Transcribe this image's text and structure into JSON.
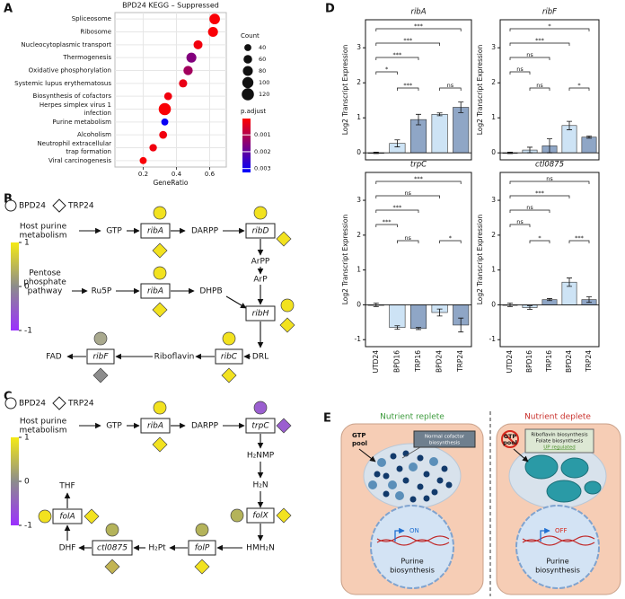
{
  "panel_labels": [
    "A",
    "B",
    "C",
    "D",
    "E"
  ],
  "chart_data": [
    {
      "type": "dot",
      "title": "BPD24 KEGG – Suppressed",
      "categories": [
        "Spliceosome",
        "Ribosome",
        "Nucleocytoplasmic transport",
        "Thermogenesis",
        "Oxidative phosphorylation",
        "Systemic lupus erythematosus",
        "Biosynthesis of cofactors",
        "Herpes simplex virus 1\ninfection",
        "Purine metabolism",
        "Alcoholism",
        "Neutrophil extracellular\ntrap formation",
        "Viral carcinogenesis"
      ],
      "values": [
        0.63,
        0.62,
        0.53,
        0.49,
        0.47,
        0.44,
        0.35,
        0.33,
        0.33,
        0.32,
        0.26,
        0.2
      ],
      "size": [
        90,
        80,
        65,
        80,
        70,
        55,
        50,
        120,
        40,
        50,
        45,
        40
      ],
      "p_adjust": [
        0.0001,
        0.0001,
        0.0002,
        0.0016,
        0.0012,
        0.0003,
        0.0002,
        0.0001,
        0.0031,
        0.0002,
        0.0002,
        0.0001
      ],
      "x_label": "GeneRatio",
      "xlim": [
        0.03,
        0.7
      ],
      "xticks": [
        0.2,
        0.4,
        0.6
      ],
      "grid": true,
      "size_legend": {
        "title": "Count",
        "values": [
          40,
          60,
          80,
          100,
          120
        ]
      },
      "color_legend": {
        "title": "p.adjust",
        "ticks": [
          0.001,
          0.002,
          0.003
        ],
        "lim": [
          3e-05,
          0.00323
        ],
        "colors": [
          "#ff0000",
          "#0000ff"
        ]
      }
    },
    {
      "type": "bar",
      "title": "ribA",
      "y_label": "Log2 Transcript Expression",
      "categories": [
        null,
        null,
        null,
        null,
        null
      ],
      "values": [
        0,
        0.27,
        0.95,
        1.1,
        1.3
      ],
      "errors": [
        0.02,
        0.1,
        0.15,
        0.04,
        0.15
      ],
      "colors": [
        "#cccccc",
        "#cde3f5",
        "#8fa6c6",
        "#cde3f5",
        "#8fa6c6"
      ],
      "ylim": [
        -0.2,
        3.8
      ],
      "yticks": [
        0,
        1,
        2,
        3
      ],
      "comparisons": [
        {
          "pair": [
            0,
            4
          ],
          "label": "***"
        },
        {
          "pair": [
            0,
            3
          ],
          "label": "***"
        },
        {
          "pair": [
            0,
            2
          ],
          "label": "***"
        },
        {
          "pair": [
            0,
            1
          ],
          "label": "*"
        },
        {
          "pair": [
            1,
            2
          ],
          "label": "***"
        },
        {
          "pair": [
            3,
            4
          ],
          "label": "ns"
        }
      ]
    },
    {
      "type": "bar",
      "title": "ribF",
      "y_label": "Log2 Transcript Expression",
      "categories": [
        null,
        null,
        null,
        null,
        null
      ],
      "values": [
        0,
        0.08,
        0.2,
        0.78,
        0.45
      ],
      "errors": [
        0.02,
        0.08,
        0.2,
        0.12,
        0.03
      ],
      "colors": [
        "#cccccc",
        "#cde3f5",
        "#8fa6c6",
        "#cde3f5",
        "#8fa6c6"
      ],
      "ylim": [
        -0.2,
        3.8
      ],
      "yticks": [
        0,
        1,
        2,
        3
      ],
      "comparisons": [
        {
          "pair": [
            0,
            4
          ],
          "label": "*"
        },
        {
          "pair": [
            0,
            3
          ],
          "label": "***"
        },
        {
          "pair": [
            0,
            2
          ],
          "label": "ns"
        },
        {
          "pair": [
            0,
            1
          ],
          "label": "ns"
        },
        {
          "pair": [
            1,
            2
          ],
          "label": "ns"
        },
        {
          "pair": [
            3,
            4
          ],
          "label": "*"
        }
      ]
    },
    {
      "type": "bar",
      "title": "trpC",
      "y_label": "Log2 Transcript Expression",
      "categories": [
        "UTD24",
        "BPD16",
        "TRP16",
        "BPD24",
        "TRP24"
      ],
      "values": [
        0,
        -0.65,
        -0.68,
        -0.22,
        -0.58
      ],
      "errors": [
        0.05,
        0.05,
        0.03,
        0.1,
        0.2
      ],
      "colors": [
        "#cccccc",
        "#cde3f5",
        "#8fa6c6",
        "#cde3f5",
        "#8fa6c6"
      ],
      "ylim": [
        -1.2,
        3.8
      ],
      "yticks": [
        -1,
        0,
        1,
        2,
        3
      ],
      "comparisons": [
        {
          "pair": [
            0,
            4
          ],
          "label": "***"
        },
        {
          "pair": [
            0,
            3
          ],
          "label": "ns"
        },
        {
          "pair": [
            0,
            2
          ],
          "label": "***"
        },
        {
          "pair": [
            0,
            1
          ],
          "label": "***"
        },
        {
          "pair": [
            1,
            2
          ],
          "label": "ns"
        },
        {
          "pair": [
            3,
            4
          ],
          "label": "*"
        }
      ]
    },
    {
      "type": "bar",
      "title": "ctl0875",
      "y_label": "Log2 Transcript Expression",
      "categories": [
        "UTD24",
        "BPD16",
        "TRP16",
        "BPD24",
        "TRP24"
      ],
      "values": [
        0,
        -0.08,
        0.15,
        0.65,
        0.15
      ],
      "errors": [
        0.05,
        0.05,
        0.03,
        0.12,
        0.08
      ],
      "colors": [
        "#cccccc",
        "#cde3f5",
        "#8fa6c6",
        "#cde3f5",
        "#8fa6c6"
      ],
      "ylim": [
        -1.2,
        3.8
      ],
      "yticks": [
        -1,
        0,
        1,
        2,
        3
      ],
      "comparisons": [
        {
          "pair": [
            0,
            4
          ],
          "label": "ns"
        },
        {
          "pair": [
            0,
            3
          ],
          "label": "***"
        },
        {
          "pair": [
            0,
            2
          ],
          "label": "ns"
        },
        {
          "pair": [
            0,
            1
          ],
          "label": "ns"
        },
        {
          "pair": [
            1,
            2
          ],
          "label": "*"
        },
        {
          "pair": [
            3,
            4
          ],
          "label": "***"
        }
      ]
    }
  ],
  "pathway_b": {
    "legend": [
      "BPD24",
      "TRP24"
    ],
    "source_1": [
      "Host purine",
      "metabolism"
    ],
    "source_2": [
      "Pentose",
      "phosphate",
      "pathway"
    ],
    "metabolites": [
      "GTP",
      "DARPP",
      "ArPP",
      "ArP",
      "Ru5P",
      "DHPB",
      "DRL",
      "Riboflavin",
      "FAD"
    ],
    "genes": [
      "ribA",
      "ribD",
      "ribA",
      "ribH",
      "ribC",
      "ribF"
    ],
    "colorbar_ticks": [
      1,
      0,
      -1
    ]
  },
  "pathway_c": {
    "legend": [
      "BPD24",
      "TRP24"
    ],
    "source": [
      "Host purine",
      "metabolism"
    ],
    "metabolites": [
      "GTP",
      "DARPP",
      "H₂NMP",
      "H₂N",
      "HMH₂N",
      "H₂Pt",
      "DHF",
      "THF"
    ],
    "genes": [
      "ribA",
      "trpC",
      "folX",
      "folP",
      "ctl0875",
      "folA"
    ],
    "colorbar_ticks": [
      1,
      0,
      -1
    ]
  },
  "model_e": {
    "conditions": [
      "Nutrient replete",
      "Nutrient deplete"
    ],
    "gtp_pool": [
      "GTP",
      "pool"
    ],
    "normal_box": [
      "Normal cofactor",
      "biosynthesis"
    ],
    "deplete_box": [
      "Riboflavin biosynthesis",
      "Folate biosynthesis",
      "UP regulated"
    ],
    "nucleus": [
      "Purine",
      "biosynthesis"
    ],
    "states": [
      "ON",
      "OFF"
    ]
  }
}
